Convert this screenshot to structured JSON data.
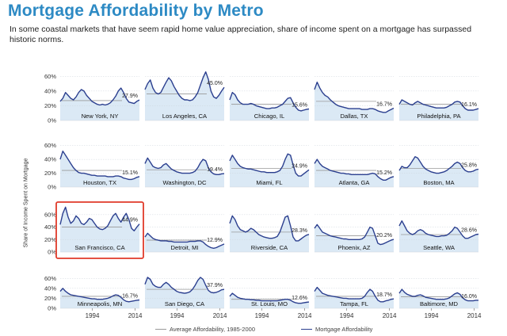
{
  "title": "Mortgage Affordability by Metro",
  "subtitle": "In some coastal markets that have seem rapid home value appreciation, share of income spent on a mortgage has surpassed historic norms.",
  "y_axis_label": "Share of Income Spent on Mortgage",
  "legend": {
    "average": "Average Affordability, 1985-2000",
    "mortgage": "Mortgage Affordability"
  },
  "colors": {
    "title": "#2d8ac4",
    "line": "#2b3f8f",
    "fill": "#dbe9f5",
    "highlight": "#e03a2a",
    "average": "#999999"
  },
  "chart_data": {
    "type": "area",
    "layout": "small-multiples 5x4",
    "x_range": [
      1979,
      2016
    ],
    "x_tick_labels": [
      "1994",
      "2014"
    ],
    "y_ticks": [
      "0%",
      "20%",
      "40%",
      "60%"
    ],
    "ylim": [
      0,
      0.7
    ],
    "highlighted": "San Francisco, CA",
    "panels": [
      {
        "name": "New York, NY",
        "final": "27.9%",
        "avg": 0.27,
        "y": [
          0.26,
          0.3,
          0.38,
          0.34,
          0.3,
          0.28,
          0.32,
          0.38,
          0.42,
          0.4,
          0.34,
          0.3,
          0.26,
          0.24,
          0.22,
          0.21,
          0.22,
          0.21,
          0.22,
          0.24,
          0.28,
          0.33,
          0.4,
          0.44,
          0.38,
          0.3,
          0.25,
          0.24,
          0.23,
          0.26,
          0.279
        ]
      },
      {
        "name": "Los Angeles, CA",
        "final": "45.0%",
        "avg": 0.36,
        "y": [
          0.42,
          0.5,
          0.55,
          0.44,
          0.38,
          0.36,
          0.38,
          0.45,
          0.52,
          0.58,
          0.54,
          0.46,
          0.4,
          0.34,
          0.3,
          0.28,
          0.28,
          0.27,
          0.28,
          0.32,
          0.38,
          0.48,
          0.58,
          0.66,
          0.56,
          0.4,
          0.32,
          0.3,
          0.34,
          0.4,
          0.45
        ]
      },
      {
        "name": "Chicago, IL",
        "final": "15.6%",
        "avg": 0.22,
        "y": [
          0.28,
          0.38,
          0.35,
          0.28,
          0.24,
          0.22,
          0.22,
          0.22,
          0.23,
          0.22,
          0.2,
          0.19,
          0.18,
          0.17,
          0.16,
          0.16,
          0.17,
          0.17,
          0.18,
          0.2,
          0.22,
          0.26,
          0.3,
          0.31,
          0.24,
          0.18,
          0.14,
          0.13,
          0.14,
          0.15,
          0.156
        ]
      },
      {
        "name": "Dallas, TX",
        "final": "16.7%",
        "avg": 0.26,
        "y": [
          0.42,
          0.52,
          0.44,
          0.38,
          0.34,
          0.32,
          0.28,
          0.25,
          0.22,
          0.2,
          0.19,
          0.18,
          0.17,
          0.16,
          0.16,
          0.16,
          0.16,
          0.16,
          0.15,
          0.15,
          0.15,
          0.16,
          0.16,
          0.15,
          0.13,
          0.12,
          0.11,
          0.11,
          0.13,
          0.15,
          0.167
        ]
      },
      {
        "name": "Philadelphia, PA",
        "final": "16.1%",
        "avg": 0.22,
        "y": [
          0.22,
          0.28,
          0.26,
          0.24,
          0.22,
          0.21,
          0.24,
          0.26,
          0.24,
          0.22,
          0.21,
          0.2,
          0.19,
          0.18,
          0.17,
          0.17,
          0.17,
          0.17,
          0.18,
          0.2,
          0.22,
          0.25,
          0.26,
          0.25,
          0.2,
          0.16,
          0.14,
          0.14,
          0.14,
          0.15,
          0.161
        ]
      },
      {
        "name": "Houston, TX",
        "final": "15.1%",
        "avg": 0.24,
        "y": [
          0.4,
          0.52,
          0.46,
          0.4,
          0.34,
          0.28,
          0.24,
          0.21,
          0.2,
          0.2,
          0.19,
          0.18,
          0.17,
          0.17,
          0.16,
          0.16,
          0.16,
          0.16,
          0.15,
          0.15,
          0.15,
          0.16,
          0.16,
          0.15,
          0.13,
          0.12,
          0.11,
          0.11,
          0.12,
          0.14,
          0.151
        ]
      },
      {
        "name": "Washington, DC",
        "final": "19.4%",
        "avg": 0.25,
        "y": [
          0.34,
          0.42,
          0.36,
          0.3,
          0.28,
          0.27,
          0.28,
          0.32,
          0.34,
          0.3,
          0.26,
          0.24,
          0.22,
          0.21,
          0.2,
          0.2,
          0.2,
          0.2,
          0.21,
          0.23,
          0.28,
          0.35,
          0.4,
          0.38,
          0.28,
          0.22,
          0.19,
          0.18,
          0.18,
          0.19,
          0.194
        ]
      },
      {
        "name": "Miami, FL",
        "final": "24.9%",
        "avg": 0.27,
        "y": [
          0.38,
          0.46,
          0.4,
          0.34,
          0.3,
          0.28,
          0.27,
          0.26,
          0.26,
          0.25,
          0.24,
          0.23,
          0.22,
          0.22,
          0.21,
          0.21,
          0.21,
          0.21,
          0.22,
          0.24,
          0.3,
          0.4,
          0.48,
          0.46,
          0.32,
          0.2,
          0.16,
          0.16,
          0.19,
          0.22,
          0.249
        ]
      },
      {
        "name": "Atlanta, GA",
        "final": "15.2%",
        "avg": 0.24,
        "y": [
          0.34,
          0.4,
          0.34,
          0.3,
          0.28,
          0.26,
          0.24,
          0.23,
          0.22,
          0.21,
          0.2,
          0.2,
          0.19,
          0.19,
          0.18,
          0.18,
          0.18,
          0.18,
          0.18,
          0.18,
          0.18,
          0.19,
          0.2,
          0.19,
          0.15,
          0.12,
          0.1,
          0.1,
          0.12,
          0.14,
          0.152
        ]
      },
      {
        "name": "Boston, MA",
        "final": "25.8%",
        "avg": 0.27,
        "y": [
          0.24,
          0.3,
          0.28,
          0.28,
          0.32,
          0.38,
          0.44,
          0.42,
          0.36,
          0.3,
          0.26,
          0.24,
          0.22,
          0.21,
          0.2,
          0.2,
          0.21,
          0.22,
          0.24,
          0.27,
          0.3,
          0.34,
          0.36,
          0.34,
          0.28,
          0.24,
          0.22,
          0.22,
          0.23,
          0.25,
          0.258
        ]
      },
      {
        "name": "San Francisco, CA",
        "final": "44.9%",
        "avg": 0.4,
        "y": [
          0.44,
          0.62,
          0.72,
          0.56,
          0.46,
          0.5,
          0.58,
          0.54,
          0.46,
          0.44,
          0.48,
          0.54,
          0.52,
          0.46,
          0.4,
          0.37,
          0.36,
          0.38,
          0.42,
          0.5,
          0.58,
          0.62,
          0.54,
          0.48,
          0.56,
          0.62,
          0.52,
          0.38,
          0.34,
          0.4,
          0.449
        ]
      },
      {
        "name": "Detroit, MI",
        "final": "12.9%",
        "avg": 0.19,
        "y": [
          0.24,
          0.3,
          0.26,
          0.22,
          0.2,
          0.19,
          0.18,
          0.18,
          0.18,
          0.17,
          0.17,
          0.16,
          0.16,
          0.16,
          0.16,
          0.16,
          0.16,
          0.17,
          0.17,
          0.17,
          0.18,
          0.18,
          0.16,
          0.12,
          0.09,
          0.07,
          0.06,
          0.07,
          0.09,
          0.11,
          0.129
        ]
      },
      {
        "name": "Riverside, CA",
        "final": "28.3%",
        "avg": 0.32,
        "y": [
          0.46,
          0.58,
          0.52,
          0.42,
          0.36,
          0.34,
          0.32,
          0.34,
          0.38,
          0.36,
          0.32,
          0.28,
          0.26,
          0.24,
          0.23,
          0.22,
          0.22,
          0.23,
          0.25,
          0.32,
          0.44,
          0.56,
          0.58,
          0.42,
          0.24,
          0.18,
          0.18,
          0.21,
          0.24,
          0.27,
          0.283
        ]
      },
      {
        "name": "Phoenix, AZ",
        "final": "20.2%",
        "avg": 0.26,
        "y": [
          0.38,
          0.44,
          0.38,
          0.32,
          0.3,
          0.28,
          0.26,
          0.25,
          0.24,
          0.23,
          0.22,
          0.21,
          0.21,
          0.2,
          0.2,
          0.2,
          0.2,
          0.2,
          0.21,
          0.24,
          0.32,
          0.4,
          0.38,
          0.26,
          0.14,
          0.12,
          0.13,
          0.15,
          0.17,
          0.19,
          0.202
        ]
      },
      {
        "name": "Seattle, WA",
        "final": "28.6%",
        "avg": 0.28,
        "y": [
          0.42,
          0.5,
          0.42,
          0.34,
          0.3,
          0.28,
          0.3,
          0.34,
          0.36,
          0.34,
          0.3,
          0.28,
          0.27,
          0.26,
          0.25,
          0.25,
          0.26,
          0.26,
          0.27,
          0.3,
          0.34,
          0.4,
          0.38,
          0.32,
          0.26,
          0.22,
          0.22,
          0.24,
          0.26,
          0.28,
          0.286
        ]
      },
      {
        "name": "Minneapolis, MN",
        "final": "16.7%",
        "avg": 0.24,
        "y": [
          0.34,
          0.4,
          0.34,
          0.3,
          0.27,
          0.26,
          0.25,
          0.24,
          0.23,
          0.22,
          0.21,
          0.2,
          0.19,
          0.19,
          0.18,
          0.18,
          0.18,
          0.19,
          0.2,
          0.22,
          0.25,
          0.27,
          0.26,
          0.22,
          0.17,
          0.14,
          0.13,
          0.14,
          0.15,
          0.16,
          0.167
        ]
      },
      {
        "name": "San Diego, CA",
        "final": "37.9%",
        "avg": 0.38,
        "y": [
          0.48,
          0.62,
          0.58,
          0.48,
          0.44,
          0.42,
          0.42,
          0.48,
          0.52,
          0.48,
          0.42,
          0.38,
          0.34,
          0.32,
          0.31,
          0.3,
          0.31,
          0.33,
          0.38,
          0.46,
          0.56,
          0.62,
          0.58,
          0.46,
          0.36,
          0.32,
          0.31,
          0.32,
          0.34,
          0.37,
          0.379
        ]
      },
      {
        "name": "St. Louis, MO",
        "final": "12.6%",
        "avg": 0.18,
        "y": [
          0.24,
          0.3,
          0.26,
          0.22,
          0.2,
          0.19,
          0.18,
          0.18,
          0.17,
          0.17,
          0.16,
          0.16,
          0.15,
          0.15,
          0.15,
          0.15,
          0.15,
          0.15,
          0.15,
          0.16,
          0.17,
          0.18,
          0.18,
          0.16,
          0.13,
          0.11,
          0.1,
          0.1,
          0.11,
          0.12,
          0.126
        ]
      },
      {
        "name": "Tampa, FL",
        "final": "18.7%",
        "avg": 0.24,
        "y": [
          0.34,
          0.42,
          0.36,
          0.3,
          0.28,
          0.26,
          0.25,
          0.24,
          0.23,
          0.22,
          0.21,
          0.2,
          0.2,
          0.19,
          0.19,
          0.19,
          0.19,
          0.19,
          0.2,
          0.24,
          0.32,
          0.38,
          0.34,
          0.24,
          0.16,
          0.13,
          0.13,
          0.15,
          0.16,
          0.18,
          0.187
        ]
      },
      {
        "name": "Baltimore, MD",
        "final": "16.0%",
        "avg": 0.23,
        "y": [
          0.3,
          0.38,
          0.32,
          0.28,
          0.26,
          0.24,
          0.24,
          0.26,
          0.27,
          0.25,
          0.22,
          0.21,
          0.2,
          0.19,
          0.18,
          0.18,
          0.18,
          0.18,
          0.19,
          0.21,
          0.25,
          0.29,
          0.31,
          0.28,
          0.21,
          0.17,
          0.15,
          0.15,
          0.15,
          0.16,
          0.16
        ]
      }
    ]
  }
}
